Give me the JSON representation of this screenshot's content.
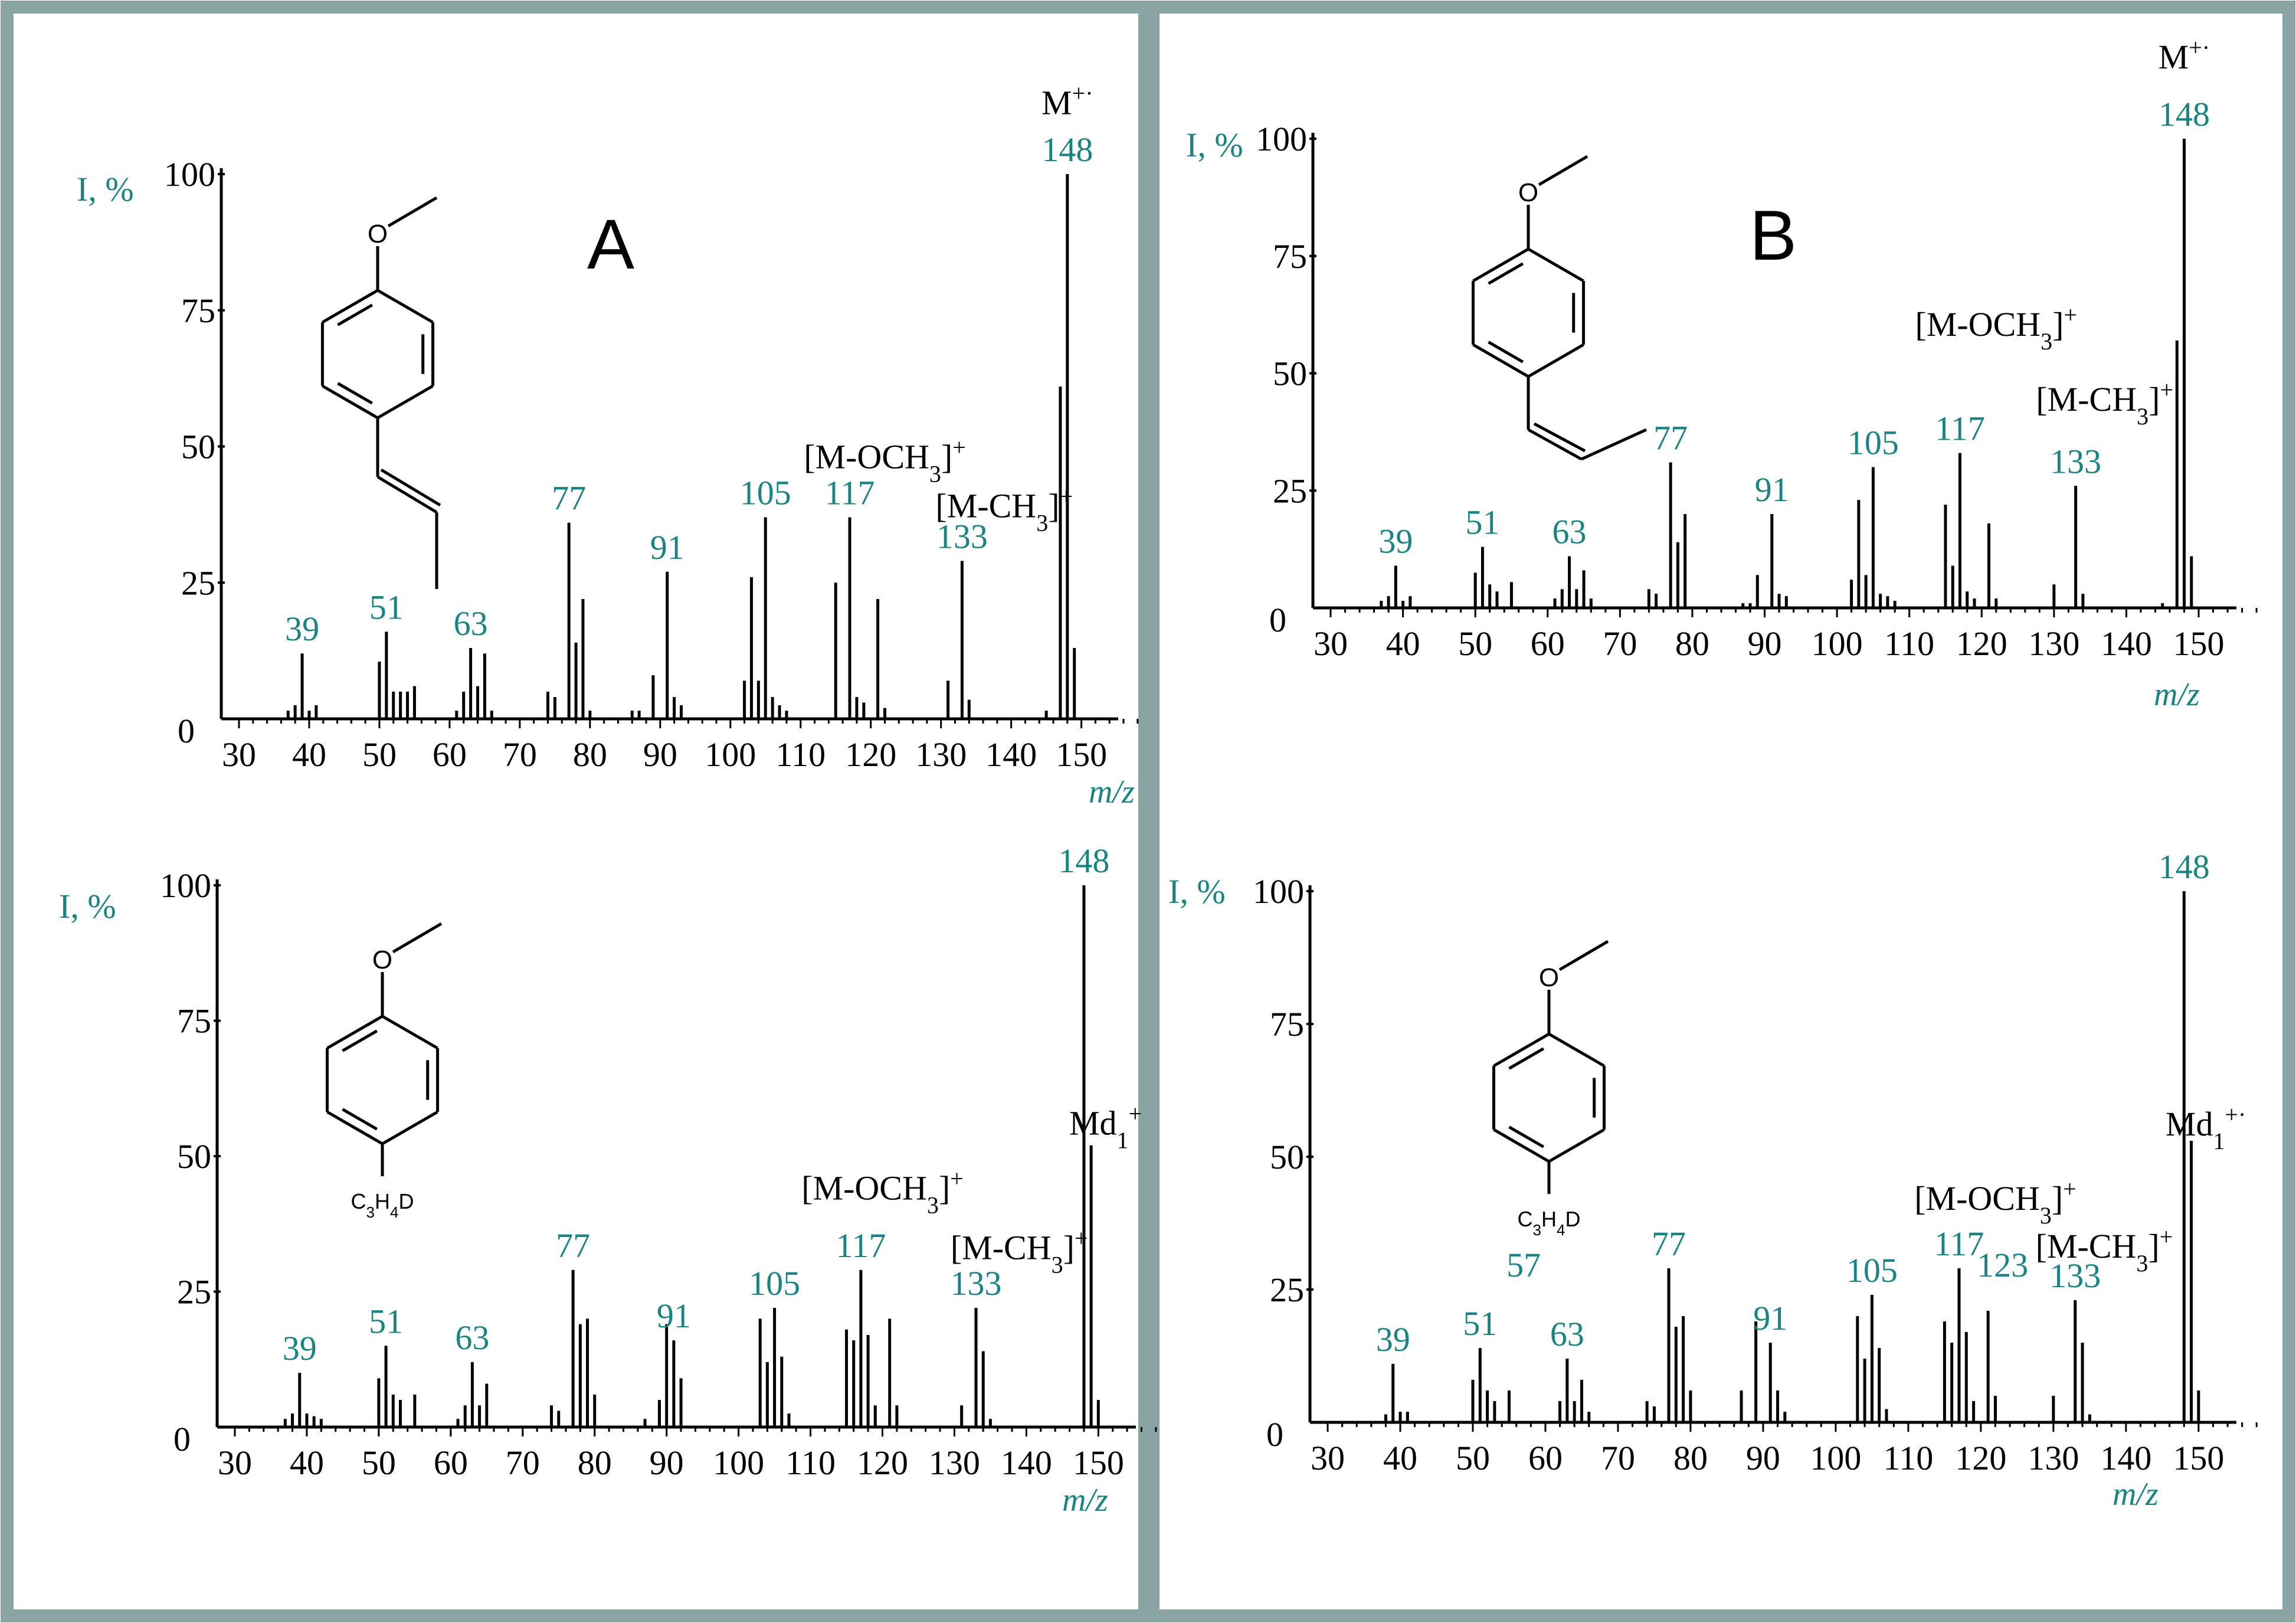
{
  "colors": {
    "border": "#8aa3a3",
    "label": "#1a8383",
    "ink": "#000000"
  },
  "panels": [
    {
      "letter": "A"
    },
    {
      "letter": "B"
    }
  ],
  "chart_data": [
    {
      "type": "bar",
      "panel": "A",
      "ylabel": "I, %",
      "xlabel": "m/z",
      "xlim": [
        30,
        160
      ],
      "ylim": [
        0,
        100
      ],
      "xticks": [
        30,
        40,
        50,
        60,
        70,
        80,
        90,
        100,
        110,
        120,
        130,
        140,
        150
      ],
      "yticks": [
        0,
        25,
        50,
        75,
        100
      ],
      "structure": {
        "substituent": ""
      },
      "x": [
        37,
        38,
        39,
        40,
        41,
        50,
        51,
        52,
        53,
        54,
        55,
        61,
        62,
        63,
        64,
        65,
        66,
        74,
        75,
        77,
        78,
        79,
        80,
        86,
        87,
        89,
        91,
        92,
        93,
        102,
        103,
        104,
        105,
        106,
        107,
        108,
        115,
        117,
        118,
        119,
        121,
        122,
        131,
        133,
        134,
        145,
        147,
        148,
        149
      ],
      "values": [
        1.5,
        2.5,
        12,
        1.5,
        2.5,
        10.5,
        16,
        5,
        5,
        5,
        6,
        1.5,
        5,
        13,
        6,
        12,
        1.5,
        5,
        4,
        36,
        14,
        22,
        1.5,
        1.5,
        1.5,
        8,
        27,
        4,
        2.5,
        7,
        26,
        7,
        37,
        4,
        2.5,
        1.5,
        25,
        37,
        4,
        3,
        22,
        2,
        7,
        29,
        3.5,
        1.5,
        61,
        100,
        13
      ],
      "annotations": [
        {
          "x": 39,
          "text": "39",
          "color": "teal"
        },
        {
          "x": 51,
          "text": "51",
          "color": "teal"
        },
        {
          "x": 63,
          "text": "63",
          "color": "teal"
        },
        {
          "x": 77,
          "text": "77",
          "color": "teal"
        },
        {
          "x": 91,
          "text": "91",
          "color": "teal"
        },
        {
          "x": 105,
          "text": "105",
          "color": "teal"
        },
        {
          "x": 117,
          "text": "117",
          "color": "teal"
        },
        {
          "x": 133,
          "text": "133",
          "color": "teal"
        },
        {
          "x": 148,
          "text": "148",
          "color": "teal"
        }
      ],
      "ions": [
        {
          "base": "M",
          "sup": "+·",
          "at": [
            148,
            111
          ]
        },
        {
          "base": "[M-OCH",
          "sub": "3",
          "mid": "]",
          "sup": "+",
          "at": [
            122,
            46
          ]
        },
        {
          "base": "[M-CH",
          "sub": "3",
          "mid": "]",
          "sup": "+",
          "at": [
            139,
            37
          ]
        }
      ]
    },
    {
      "type": "bar",
      "panel": "B",
      "ylabel": "I, %",
      "xlabel": "m/z",
      "xlim": [
        30,
        160
      ],
      "ylim": [
        0,
        100
      ],
      "xticks": [
        30,
        40,
        50,
        60,
        70,
        80,
        90,
        100,
        110,
        120,
        130,
        140,
        150
      ],
      "yticks": [
        0,
        25,
        50,
        75,
        100
      ],
      "structure": {
        "substituent": ""
      },
      "x": [
        37,
        38,
        39,
        40,
        41,
        50,
        51,
        52,
        53,
        55,
        61,
        62,
        63,
        64,
        65,
        66,
        74,
        75,
        77,
        78,
        79,
        87,
        88,
        89,
        91,
        92,
        93,
        102,
        103,
        104,
        105,
        106,
        107,
        108,
        115,
        116,
        117,
        118,
        119,
        121,
        122,
        130,
        133,
        134,
        145,
        147,
        148,
        149
      ],
      "values": [
        1.5,
        2.5,
        9,
        1.5,
        2.5,
        7.5,
        13,
        5,
        3.5,
        5.5,
        2,
        4,
        11,
        4,
        8,
        2,
        4,
        3,
        31,
        14,
        20,
        1,
        1,
        7,
        20,
        3,
        2.5,
        6,
        23,
        7,
        30,
        3,
        2.5,
        1.5,
        22,
        9,
        33,
        3.5,
        2,
        18,
        2,
        5,
        26,
        3,
        1,
        57,
        100,
        11
      ],
      "annotations": [
        {
          "x": 39,
          "text": "39",
          "color": "teal"
        },
        {
          "x": 51,
          "text": "51",
          "color": "teal"
        },
        {
          "x": 63,
          "text": "63",
          "color": "teal"
        },
        {
          "x": 77,
          "text": "77",
          "color": "teal"
        },
        {
          "x": 91,
          "text": "91",
          "color": "teal"
        },
        {
          "x": 105,
          "text": "105",
          "color": "teal"
        },
        {
          "x": 117,
          "text": "117",
          "color": "teal"
        },
        {
          "x": 133,
          "text": "133",
          "color": "teal"
        },
        {
          "x": 148,
          "text": "148",
          "color": "teal"
        }
      ],
      "ions": [
        {
          "base": "M",
          "sup": "+·",
          "at": [
            148,
            115
          ]
        },
        {
          "base": "[M-OCH",
          "sub": "3",
          "mid": "]",
          "sup": "+",
          "at": [
            122,
            58
          ]
        },
        {
          "base": "[M-CH",
          "sub": "3",
          "mid": "]",
          "sup": "+",
          "at": [
            137,
            42
          ]
        }
      ]
    },
    {
      "type": "bar",
      "panel": "A",
      "ylabel": "I, %",
      "xlabel": "m/z",
      "xlim": [
        30,
        160
      ],
      "ylim": [
        0,
        100
      ],
      "xticks": [
        30,
        40,
        50,
        60,
        70,
        80,
        90,
        100,
        110,
        120,
        130,
        140,
        150
      ],
      "yticks": [
        0,
        25,
        50,
        75,
        100
      ],
      "structure": {
        "substituent": "C3H4D"
      },
      "x": [
        37,
        38,
        39,
        40,
        41,
        42,
        50,
        51,
        52,
        53,
        55,
        61,
        62,
        63,
        64,
        65,
        74,
        75,
        77,
        78,
        79,
        80,
        87,
        89,
        90,
        91,
        92,
        103,
        104,
        105,
        106,
        107,
        115,
        116,
        117,
        118,
        119,
        121,
        122,
        131,
        133,
        134,
        135,
        148,
        149,
        150
      ],
      "values": [
        1.5,
        2.5,
        10,
        2.5,
        2,
        1.5,
        9,
        15,
        6,
        5,
        6,
        1.5,
        4,
        12,
        4,
        8,
        4,
        3,
        29,
        19,
        20,
        6,
        1.5,
        5,
        19,
        16,
        9,
        20,
        12,
        22,
        13,
        2.5,
        18,
        16,
        29,
        17,
        4,
        20,
        4,
        4,
        22,
        14,
        1.5,
        100,
        52,
        5
      ],
      "annotations": [
        {
          "x": 39,
          "text": "39",
          "color": "teal"
        },
        {
          "x": 51,
          "text": "51",
          "color": "teal"
        },
        {
          "x": 63,
          "text": "63",
          "color": "teal"
        },
        {
          "x": 77,
          "text": "77",
          "color": "teal"
        },
        {
          "x": 91,
          "text": "91",
          "color": "teal"
        },
        {
          "x": 105,
          "text": "105",
          "color": "teal"
        },
        {
          "x": 117,
          "text": "117",
          "color": "teal"
        },
        {
          "x": 133,
          "text": "133",
          "color": "teal"
        },
        {
          "x": 148,
          "text": "148",
          "color": "teal"
        }
      ],
      "ions": [
        {
          "base": "Md",
          "sub": "1",
          "sup": "+",
          "at": [
            151,
            54
          ]
        },
        {
          "base": "[M-OCH",
          "sub": "3",
          "mid": "]",
          "sup": "+",
          "at": [
            120,
            42
          ]
        },
        {
          "base": "[M-CH",
          "sub": "3",
          "mid": "]",
          "sup": "+",
          "at": [
            139,
            31
          ]
        }
      ]
    },
    {
      "type": "bar",
      "panel": "B",
      "ylabel": "I, %",
      "xlabel": "m/z",
      "xlim": [
        30,
        160
      ],
      "ylim": [
        0,
        100
      ],
      "xticks": [
        30,
        40,
        50,
        60,
        70,
        80,
        90,
        100,
        110,
        120,
        130,
        140,
        150
      ],
      "yticks": [
        0,
        25,
        50,
        75,
        100
      ],
      "structure": {
        "substituent": "C3H4D"
      },
      "x": [
        38,
        39,
        40,
        41,
        50,
        51,
        52,
        53,
        55,
        62,
        63,
        64,
        65,
        66,
        74,
        75,
        77,
        78,
        79,
        80,
        87,
        89,
        91,
        92,
        93,
        103,
        104,
        105,
        106,
        107,
        115,
        116,
        117,
        118,
        119,
        121,
        122,
        130,
        133,
        134,
        135,
        148,
        149,
        150
      ],
      "values": [
        1.5,
        11,
        2,
        2,
        8,
        14,
        6,
        4,
        6,
        4,
        12,
        4,
        8,
        2,
        4,
        3,
        29,
        18,
        20,
        6,
        6,
        19,
        15,
        6,
        2,
        20,
        12,
        24,
        14,
        2.5,
        19,
        15,
        29,
        17,
        4,
        21,
        5,
        5,
        23,
        15,
        1.5,
        100,
        53,
        6
      ],
      "annotations": [
        {
          "x": 39,
          "text": "39",
          "color": "teal"
        },
        {
          "x": 51,
          "text": "51",
          "color": "teal"
        },
        {
          "x": 57,
          "text": "57",
          "color": "teal"
        },
        {
          "x": 63,
          "text": "63",
          "color": "teal"
        },
        {
          "x": 77,
          "text": "77",
          "color": "teal"
        },
        {
          "x": 91,
          "text": "91",
          "color": "teal"
        },
        {
          "x": 105,
          "text": "105",
          "color": "teal"
        },
        {
          "x": 117,
          "text": "117",
          "color": "teal"
        },
        {
          "x": 123,
          "text": "123",
          "color": "teal"
        },
        {
          "x": 133,
          "text": "133",
          "color": "teal"
        },
        {
          "x": 148,
          "text": "148",
          "color": "teal"
        }
      ],
      "ions": [
        {
          "base": "Md",
          "sub": "1",
          "sup": "+·",
          "at": [
            151,
            54
          ]
        },
        {
          "base": "[M-OCH",
          "sub": "3",
          "mid": "]",
          "sup": "+",
          "at": [
            122,
            40
          ]
        },
        {
          "base": "[M-CH",
          "sub": "3",
          "mid": "]",
          "sup": "+",
          "at": [
            137,
            31
          ]
        }
      ]
    }
  ]
}
